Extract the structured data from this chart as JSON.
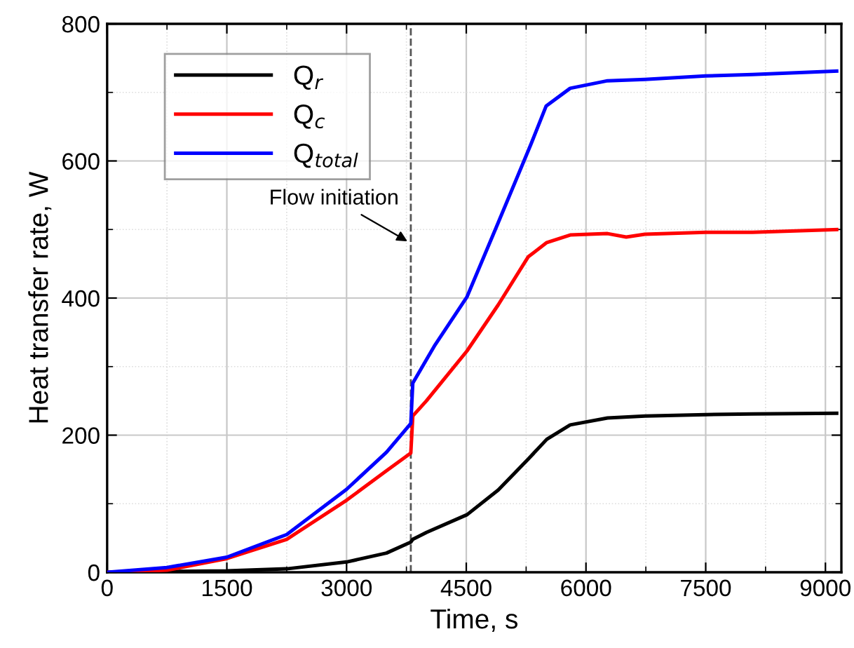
{
  "chart_data": {
    "type": "line",
    "xlabel": "Time, s",
    "ylabel": "Heat transfer rate, W",
    "xlim": [
      0,
      9200
    ],
    "ylim": [
      0,
      800
    ],
    "xticks": [
      0,
      1500,
      3000,
      4500,
      6000,
      7500,
      9000
    ],
    "yticks": [
      0,
      200,
      400,
      600,
      800
    ],
    "grid": true,
    "legend": "top left",
    "line_style": "solid",
    "ref_lines": [
      {
        "axis": "x",
        "value": 3805,
        "line_style": "dashed",
        "color": "#555555"
      }
    ],
    "annotations": [
      {
        "text": "Flow initiation",
        "x": 3805,
        "y": 480
      }
    ],
    "series": [
      {
        "name": "Q$_{r}$",
        "color": "#000000",
        "x": [
          0,
          750,
          1500,
          2250,
          3000,
          3500,
          3805,
          3830,
          4000,
          4510,
          4900,
          5275,
          5509,
          5802,
          6270,
          6738,
          7500,
          8086,
          9141
        ],
        "values": [
          0,
          1,
          2,
          5,
          15,
          28,
          44,
          48,
          58,
          84,
          120,
          165,
          194,
          215,
          225,
          228,
          230,
          231,
          232
        ]
      },
      {
        "name": "Q$_{c}$",
        "color": "#ff0000",
        "x": [
          0,
          750,
          1500,
          2250,
          3000,
          3500,
          3805,
          3830,
          4000,
          4510,
          4900,
          5275,
          5509,
          5802,
          6270,
          6504,
          6738,
          7500,
          8086,
          9141
        ],
        "values": [
          0,
          3,
          20,
          48,
          105,
          148,
          174,
          228,
          250,
          323,
          390,
          460,
          481,
          492,
          494,
          489,
          493,
          496,
          496,
          500
        ]
      },
      {
        "name": "Q$_{total}$",
        "color": "#0000ff",
        "x": [
          0,
          750,
          1500,
          2250,
          3000,
          3500,
          3805,
          3830,
          4100,
          4510,
          4900,
          5309,
          5500,
          5802,
          6270,
          6738,
          7500,
          8086,
          9141
        ],
        "values": [
          0,
          7,
          22,
          55,
          121,
          175,
          217,
          276,
          330,
          402,
          510,
          624,
          680,
          706,
          717,
          719,
          724,
          726,
          731
        ]
      }
    ]
  }
}
